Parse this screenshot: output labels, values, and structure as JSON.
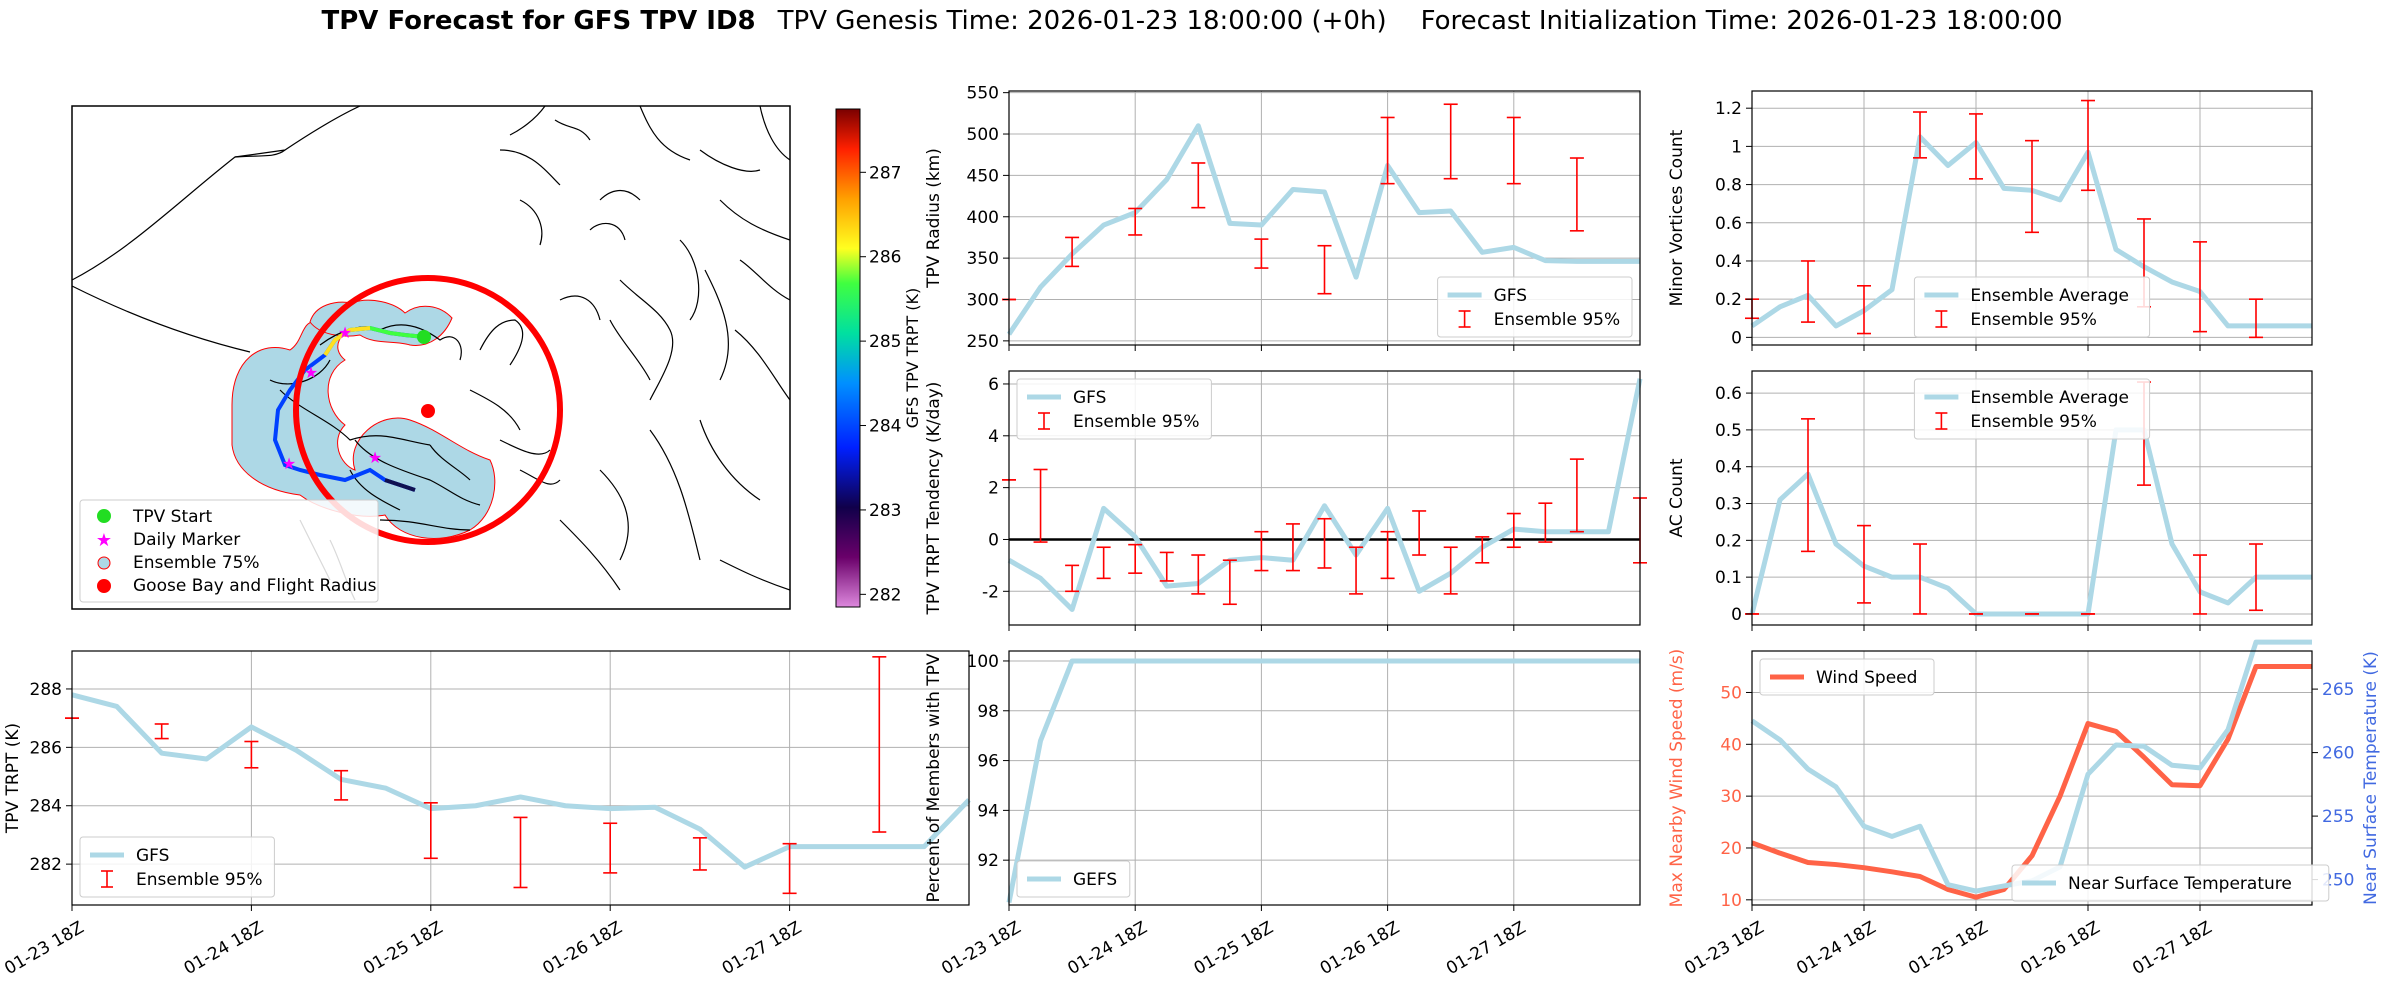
{
  "title": {
    "bold": "TPV Forecast for GFS TPV ID8",
    "genesis": "TPV Genesis Time: 2026-01-23 18:00:00 (+0h)",
    "init": "Forecast Initialization Time: 2026-01-23 18:00:00"
  },
  "colors": {
    "gfs": "#add8e6",
    "ensemble": "#ff0000",
    "wind": "#ff6347",
    "temp_axis": "#4169e1",
    "land_fill": "#add8e6",
    "circle": "#ff0000"
  },
  "time_ticks": [
    "01-23 18Z",
    "01-24 18Z",
    "01-25 18Z",
    "01-26 18Z",
    "01-27 18Z"
  ],
  "map": {
    "legend": [
      {
        "label": "TPV Start",
        "marker": "green-dot"
      },
      {
        "label": "Daily Marker",
        "marker": "magenta-star"
      },
      {
        "label": "Ensemble 75%",
        "marker": "lightblue-circle-red-edge"
      },
      {
        "label": "Goose Bay and Flight Radius",
        "marker": "red-dot"
      }
    ],
    "colorbar": {
      "label": "GFS TPV TRPT (K)",
      "range": [
        281.85,
        287.75
      ],
      "ticks": [
        282,
        283,
        284,
        285,
        286,
        287
      ]
    }
  },
  "chart_data": [
    {
      "id": "radius",
      "type": "line",
      "ylabel": "TPV Radius (km)",
      "ylim": [
        245,
        552
      ],
      "yticks": [
        250,
        300,
        350,
        400,
        450,
        500,
        550
      ],
      "grid": true,
      "legend": {
        "position": "lower-right",
        "entries": [
          "GFS",
          "Ensemble 95%"
        ]
      },
      "series": [
        {
          "name": "GFS",
          "x": [
            0,
            0.25,
            0.5,
            0.75,
            1,
            1.25,
            1.5,
            1.75,
            2,
            2.25,
            2.5,
            2.75,
            3,
            3.25,
            3.5,
            3.75,
            4,
            4.25,
            4.5,
            4.75,
            5
          ],
          "values": [
            258,
            315,
            355,
            390,
            405,
            445,
            510,
            392,
            390,
            433,
            430,
            327,
            462,
            405,
            407,
            357,
            363,
            347,
            346,
            346,
            346
          ]
        }
      ],
      "errorbars": [
        {
          "x": 0,
          "low": 300,
          "high": 300
        },
        {
          "x": 0.5,
          "low": 340,
          "high": 375
        },
        {
          "x": 1,
          "low": 378,
          "high": 410
        },
        {
          "x": 1.5,
          "low": 411,
          "high": 465
        },
        {
          "x": 2,
          "low": 338,
          "high": 373
        },
        {
          "x": 2.5,
          "low": 307,
          "high": 365
        },
        {
          "x": 3,
          "low": 440,
          "high": 520
        },
        {
          "x": 3.5,
          "low": 446,
          "high": 536
        },
        {
          "x": 4,
          "low": 440,
          "high": 520
        },
        {
          "x": 4.5,
          "low": 383,
          "high": 471
        }
      ]
    },
    {
      "id": "minor",
      "type": "line",
      "ylabel": "Minor Vortices Count",
      "ylim": [
        -0.04,
        1.29
      ],
      "yticks": [
        0.0,
        0.2,
        0.4,
        0.6,
        0.8,
        1.0,
        1.2
      ],
      "grid": true,
      "legend": {
        "position": "lower-center",
        "entries": [
          "Ensemble Average",
          "Ensemble 95%"
        ]
      },
      "series": [
        {
          "name": "Ensemble Average",
          "x": [
            0,
            0.25,
            0.5,
            0.75,
            1,
            1.25,
            1.5,
            1.75,
            2,
            2.25,
            2.5,
            2.75,
            3,
            3.25,
            3.5,
            3.75,
            4,
            4.25,
            4.5,
            4.75,
            5
          ],
          "values": [
            0.06,
            0.16,
            0.22,
            0.06,
            0.14,
            0.25,
            1.05,
            0.9,
            1.02,
            0.78,
            0.77,
            0.72,
            0.97,
            0.46,
            0.37,
            0.29,
            0.24,
            0.06,
            0.06,
            0.06,
            0.06
          ]
        }
      ],
      "errorbars": [
        {
          "x": 0,
          "low": 0.1,
          "high": 0.2
        },
        {
          "x": 0.5,
          "low": 0.08,
          "high": 0.4
        },
        {
          "x": 1,
          "low": 0.02,
          "high": 0.27
        },
        {
          "x": 1.5,
          "low": 0.94,
          "high": 1.18
        },
        {
          "x": 2,
          "low": 0.83,
          "high": 1.17
        },
        {
          "x": 2.5,
          "low": 0.55,
          "high": 1.03
        },
        {
          "x": 3,
          "low": 0.77,
          "high": 1.24
        },
        {
          "x": 3.5,
          "low": 0.16,
          "high": 0.62
        },
        {
          "x": 4,
          "low": 0.03,
          "high": 0.5
        },
        {
          "x": 4.5,
          "low": 0.0,
          "high": 0.2
        }
      ]
    },
    {
      "id": "tendency",
      "type": "line",
      "ylabel": "TPV TRPT Tendency (K/day)",
      "ylim": [
        -3.3,
        6.5
      ],
      "yticks": [
        -2,
        0,
        2,
        4,
        6
      ],
      "zero_line": true,
      "grid": true,
      "legend": {
        "position": "upper-left",
        "entries": [
          "GFS",
          "Ensemble 95%"
        ]
      },
      "series": [
        {
          "name": "GFS",
          "x": [
            0,
            0.25,
            0.5,
            0.75,
            1,
            1.25,
            1.5,
            1.75,
            2,
            2.25,
            2.5,
            2.75,
            3,
            3.25,
            3.5,
            3.75,
            4,
            4.25,
            4.5,
            4.75,
            5
          ],
          "values": [
            -0.8,
            -1.5,
            -2.7,
            1.2,
            0.1,
            -1.8,
            -1.7,
            -0.8,
            -0.7,
            -0.8,
            1.3,
            -0.6,
            1.2,
            -2.0,
            -1.3,
            -0.3,
            0.4,
            0.3,
            0.3,
            0.3,
            6.2
          ]
        }
      ],
      "errorbars": [
        {
          "x": 0,
          "low": 2.3,
          "high": 2.3
        },
        {
          "x": 0.25,
          "low": -0.1,
          "high": 2.7
        },
        {
          "x": 0.5,
          "low": -2.0,
          "high": -1.0
        },
        {
          "x": 0.75,
          "low": -1.5,
          "high": -0.3
        },
        {
          "x": 1,
          "low": -1.3,
          "high": -0.2
        },
        {
          "x": 1.25,
          "low": -1.6,
          "high": -0.5
        },
        {
          "x": 1.5,
          "low": -2.1,
          "high": -0.6
        },
        {
          "x": 1.75,
          "low": -2.5,
          "high": -0.8
        },
        {
          "x": 2,
          "low": -1.2,
          "high": 0.3
        },
        {
          "x": 2.25,
          "low": -1.2,
          "high": 0.6
        },
        {
          "x": 2.5,
          "low": -1.1,
          "high": 0.8
        },
        {
          "x": 2.75,
          "low": -2.1,
          "high": -0.3
        },
        {
          "x": 3,
          "low": -1.5,
          "high": 0.3
        },
        {
          "x": 3.25,
          "low": -0.6,
          "high": 1.1
        },
        {
          "x": 3.5,
          "low": -2.1,
          "high": -0.3
        },
        {
          "x": 3.75,
          "low": -0.9,
          "high": 0.1
        },
        {
          "x": 4,
          "low": -0.3,
          "high": 1.0
        },
        {
          "x": 4.25,
          "low": -0.1,
          "high": 1.4
        },
        {
          "x": 4.5,
          "low": 0.3,
          "high": 3.1
        },
        {
          "x": 5,
          "low": -0.9,
          "high": 1.6
        }
      ]
    },
    {
      "id": "ac",
      "type": "line",
      "ylabel": "AC Count",
      "ylim": [
        -0.03,
        0.66
      ],
      "yticks": [
        0.0,
        0.1,
        0.2,
        0.3,
        0.4,
        0.5,
        0.6
      ],
      "grid": true,
      "legend": {
        "position": "upper-center",
        "entries": [
          "Ensemble Average",
          "Ensemble 95%"
        ]
      },
      "series": [
        {
          "name": "Ensemble Average",
          "x": [
            0,
            0.25,
            0.5,
            0.75,
            1,
            1.25,
            1.5,
            1.75,
            2,
            2.25,
            2.5,
            2.75,
            3,
            3.25,
            3.5,
            3.75,
            4,
            4.25,
            4.5,
            4.75,
            5
          ],
          "values": [
            0.0,
            0.31,
            0.38,
            0.19,
            0.13,
            0.1,
            0.1,
            0.07,
            0.0,
            0.0,
            0.0,
            0.0,
            0.0,
            0.5,
            0.5,
            0.19,
            0.06,
            0.03,
            0.1,
            0.1,
            0.1
          ]
        }
      ],
      "errorbars": [
        {
          "x": 0,
          "low": 0.0,
          "high": 0.0
        },
        {
          "x": 0.5,
          "low": 0.17,
          "high": 0.53
        },
        {
          "x": 1,
          "low": 0.03,
          "high": 0.24
        },
        {
          "x": 1.5,
          "low": 0.0,
          "high": 0.19
        },
        {
          "x": 2,
          "low": 0.0,
          "high": 0.0
        },
        {
          "x": 2.5,
          "low": 0.0,
          "high": 0.0
        },
        {
          "x": 3,
          "low": 0.0,
          "high": 0.0
        },
        {
          "x": 3.5,
          "low": 0.35,
          "high": 0.63
        },
        {
          "x": 4,
          "low": 0.0,
          "high": 0.16
        },
        {
          "x": 4.5,
          "low": 0.01,
          "high": 0.19
        }
      ]
    },
    {
      "id": "trpt",
      "type": "line",
      "ylabel": "TPV TRPT (K)",
      "ylim": [
        280.6,
        289.3
      ],
      "yticks": [
        282,
        284,
        286,
        288
      ],
      "grid": true,
      "legend": {
        "position": "lower-left",
        "entries": [
          "GFS",
          "Ensemble 95%"
        ]
      },
      "series": [
        {
          "name": "GFS",
          "x": [
            0,
            0.25,
            0.5,
            0.75,
            1,
            1.25,
            1.5,
            1.75,
            2,
            2.25,
            2.5,
            2.75,
            3,
            3.25,
            3.5,
            3.75,
            4,
            4.25,
            4.5,
            4.75,
            5
          ],
          "values": [
            287.8,
            287.4,
            285.8,
            285.6,
            286.7,
            285.9,
            284.9,
            284.6,
            283.9,
            284.0,
            284.3,
            284.0,
            283.9,
            283.95,
            283.2,
            281.9,
            282.6,
            282.6,
            282.6,
            282.6,
            284.2
          ]
        }
      ],
      "errorbars": [
        {
          "x": 0,
          "low": 287.0,
          "high": 287.0
        },
        {
          "x": 0.5,
          "low": 286.3,
          "high": 286.8
        },
        {
          "x": 1,
          "low": 285.3,
          "high": 286.2
        },
        {
          "x": 1.5,
          "low": 284.2,
          "high": 285.2
        },
        {
          "x": 2,
          "low": 282.2,
          "high": 284.1
        },
        {
          "x": 2.5,
          "low": 281.2,
          "high": 283.6
        },
        {
          "x": 3,
          "low": 281.7,
          "high": 283.4
        },
        {
          "x": 3.5,
          "low": 281.8,
          "high": 282.9
        },
        {
          "x": 4,
          "low": 281.0,
          "high": 282.7
        },
        {
          "x": 4.5,
          "low": 283.1,
          "high": 289.1
        }
      ]
    },
    {
      "id": "members",
      "type": "line",
      "ylabel": "Percent of Members with TPV",
      "ylim": [
        90.2,
        100.4
      ],
      "yticks": [
        92,
        94,
        96,
        98,
        100
      ],
      "grid": true,
      "legend": {
        "position": "lower-left",
        "entries": [
          "GEFS"
        ]
      },
      "series": [
        {
          "name": "GEFS",
          "x": [
            0,
            0.25,
            0.5,
            0.75,
            1,
            1.25,
            1.5,
            1.75,
            2,
            2.25,
            2.5,
            2.75,
            3,
            3.25,
            3.5,
            3.75,
            4,
            4.25,
            4.5,
            4.75,
            5
          ],
          "values": [
            90.3,
            96.8,
            100,
            100,
            100,
            100,
            100,
            100,
            100,
            100,
            100,
            100,
            100,
            100,
            100,
            100,
            100,
            100,
            100,
            100,
            100
          ]
        }
      ]
    },
    {
      "id": "wind",
      "type": "line",
      "ylabel": "Max Nearby Wind Speed (m/s)",
      "ylabel2": "Near Surface Temperature (K)",
      "ylim": [
        9,
        58
      ],
      "yticks": [
        10,
        20,
        30,
        40,
        50
      ],
      "ylim2": [
        248,
        268
      ],
      "yticks2": [
        250,
        255,
        260,
        265
      ],
      "grid": true,
      "legend": {
        "entries": [
          "Wind Speed",
          "Near Surface Temperature"
        ]
      },
      "series": [
        {
          "name": "Wind Speed",
          "axis": "left",
          "x": [
            0,
            0.25,
            0.5,
            0.75,
            1,
            1.25,
            1.5,
            1.75,
            2,
            2.25,
            2.5,
            2.75,
            3,
            3.25,
            3.5,
            3.75,
            4,
            4.25,
            4.5,
            4.75,
            5
          ],
          "values": [
            21,
            19,
            17.2,
            16.8,
            16.2,
            15.4,
            14.5,
            12,
            10.5,
            12,
            18.5,
            30,
            44,
            42.5,
            37.5,
            32.2,
            32,
            41,
            55,
            55,
            55
          ]
        },
        {
          "name": "Near Surface Temperature",
          "axis": "right",
          "x": [
            0,
            0.25,
            0.5,
            0.75,
            1,
            1.25,
            1.5,
            1.75,
            2,
            2.25,
            2.5,
            2.75,
            3,
            3.25,
            3.5,
            3.75,
            4,
            4.25,
            4.5,
            4.75,
            5
          ],
          "values": [
            262.5,
            261,
            258.7,
            257.3,
            254.2,
            253.4,
            254.2,
            249.6,
            249.1,
            249.5,
            249.9,
            251,
            258.3,
            260.6,
            260.5,
            259,
            258.8,
            261.8,
            268.7,
            268.7,
            268.7
          ]
        }
      ]
    }
  ]
}
